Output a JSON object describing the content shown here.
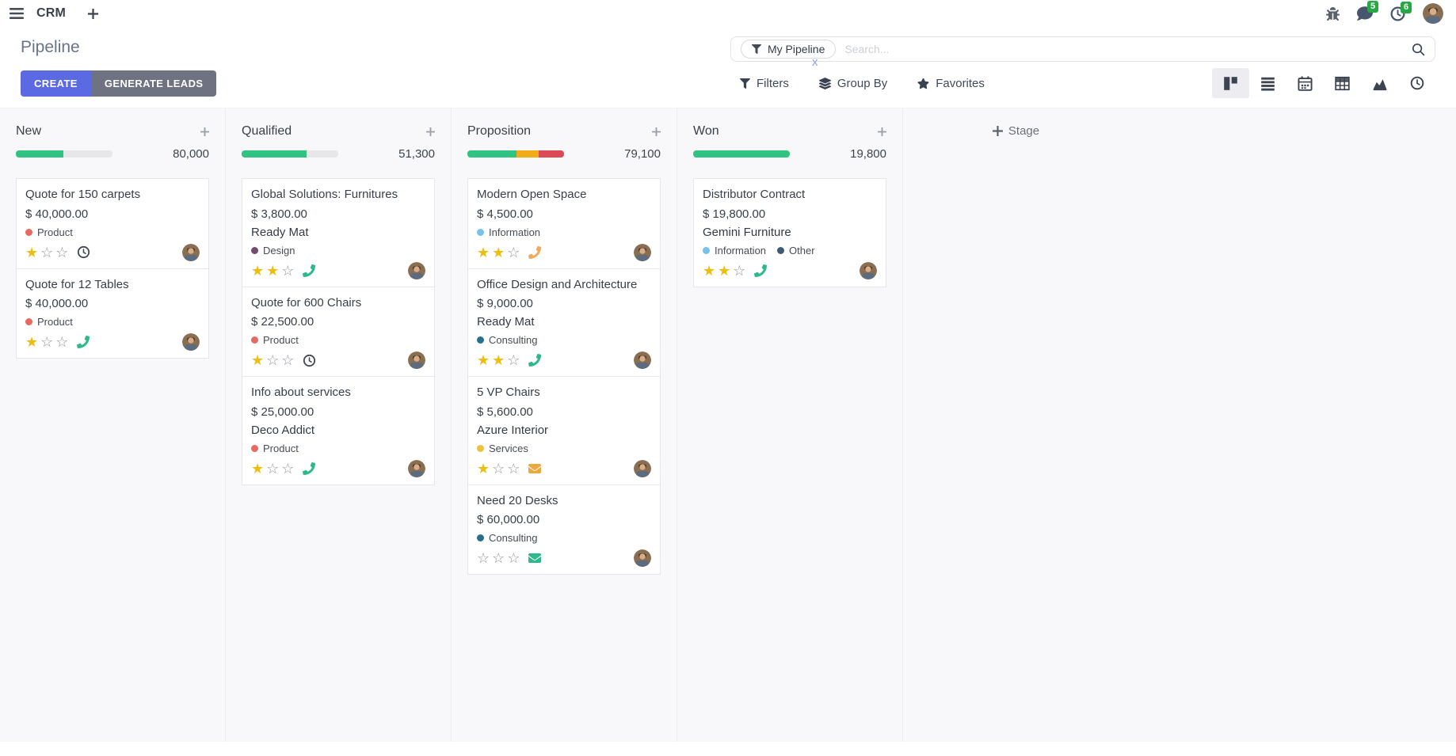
{
  "navbar": {
    "app_name": "CRM",
    "messages_badge": "5",
    "activities_badge": "6"
  },
  "control_panel": {
    "title": "Pipeline",
    "create_label": "CREATE",
    "generate_leads_label": "GENERATE LEADS",
    "search": {
      "facet_label": "My Pipeline",
      "placeholder": "Search...",
      "remove_label": "x"
    },
    "filters_label": "Filters",
    "group_by_label": "Group By",
    "favorites_label": "Favorites",
    "view_switcher": {
      "active": "kanban",
      "views": [
        "kanban",
        "list",
        "calendar",
        "pivot",
        "graph",
        "activity"
      ]
    }
  },
  "theme": {
    "primary_button": "#5b69e2",
    "secondary_button": "#6f7280",
    "badge": "#28a745",
    "star_on": "#eebd11",
    "star_off": "#8f959e",
    "progress": {
      "success": "#30c381",
      "warning": "#f0ad18",
      "danger": "#dc4a56"
    }
  },
  "board": {
    "add_stage_label": "Stage",
    "star_total": 3,
    "columns": [
      {
        "name": "New",
        "amount": "80,000",
        "progress": [
          {
            "type": "success",
            "pct": 49
          }
        ],
        "cards": [
          {
            "title": "Quote for 150 carpets",
            "amount": "$ 40,000.00",
            "tags": [
              {
                "label": "Product",
                "color": "#e8695f"
              }
            ],
            "stars": 1,
            "activity": {
              "icon": "clock",
              "color": "#3f4854"
            }
          },
          {
            "title": "Quote for 12 Tables",
            "amount": "$ 40,000.00",
            "tags": [
              {
                "label": "Product",
                "color": "#e8695f"
              }
            ],
            "stars": 1,
            "activity": {
              "icon": "phone",
              "color": "#2db98a"
            }
          }
        ]
      },
      {
        "name": "Qualified",
        "amount": "51,300",
        "progress": [
          {
            "type": "success",
            "pct": 67
          }
        ],
        "cards": [
          {
            "title": "Global Solutions: Furnitures",
            "amount": "$ 3,800.00",
            "partner": "Ready Mat",
            "tags": [
              {
                "label": "Design",
                "color": "#744a6e"
              }
            ],
            "stars": 2,
            "activity": {
              "icon": "phone",
              "color": "#2db98a"
            }
          },
          {
            "title": "Quote for 600 Chairs",
            "amount": "$ 22,500.00",
            "tags": [
              {
                "label": "Product",
                "color": "#e8695f"
              }
            ],
            "stars": 1,
            "activity": {
              "icon": "clock",
              "color": "#3f4854"
            }
          },
          {
            "title": "Info about services",
            "amount": "$ 25,000.00",
            "partner": "Deco Addict",
            "tags": [
              {
                "label": "Product",
                "color": "#e8695f"
              }
            ],
            "stars": 1,
            "activity": {
              "icon": "phone",
              "color": "#2db98a"
            }
          }
        ]
      },
      {
        "name": "Proposition",
        "amount": "79,100",
        "progress": [
          {
            "type": "success",
            "pct": 51
          },
          {
            "type": "warning",
            "pct": 23
          },
          {
            "type": "danger",
            "pct": 26
          }
        ],
        "cards": [
          {
            "title": "Modern Open Space",
            "amount": "$ 4,500.00",
            "tags": [
              {
                "label": "Information",
                "color": "#74c3ec"
              }
            ],
            "stars": 2,
            "activity": {
              "icon": "phone",
              "color": "#f0a95e"
            }
          },
          {
            "title": "Office Design and Architecture",
            "amount": "$ 9,000.00",
            "partner": "Ready Mat",
            "tags": [
              {
                "label": "Consulting",
                "color": "#27708b"
              }
            ],
            "stars": 2,
            "activity": {
              "icon": "phone",
              "color": "#2db98a"
            }
          },
          {
            "title": "5 VP Chairs",
            "amount": "$ 5,600.00",
            "partner": "Azure Interior",
            "tags": [
              {
                "label": "Services",
                "color": "#eec23f"
              }
            ],
            "stars": 1,
            "activity": {
              "icon": "envelope",
              "color": "#eca73f"
            }
          },
          {
            "title": "Need 20 Desks",
            "amount": "$ 60,000.00",
            "tags": [
              {
                "label": "Consulting",
                "color": "#27708b"
              }
            ],
            "stars": 0,
            "activity": {
              "icon": "envelope",
              "color": "#2db98a"
            }
          }
        ]
      },
      {
        "name": "Won",
        "amount": "19,800",
        "progress": [
          {
            "type": "success",
            "pct": 100
          }
        ],
        "cards": [
          {
            "title": "Distributor Contract",
            "amount": "$ 19,800.00",
            "partner": "Gemini Furniture",
            "tags": [
              {
                "label": "Information",
                "color": "#74c3ec"
              },
              {
                "label": "Other",
                "color": "#3e5a77"
              }
            ],
            "stars": 2,
            "activity": {
              "icon": "phone",
              "color": "#2db98a"
            }
          }
        ]
      }
    ]
  }
}
